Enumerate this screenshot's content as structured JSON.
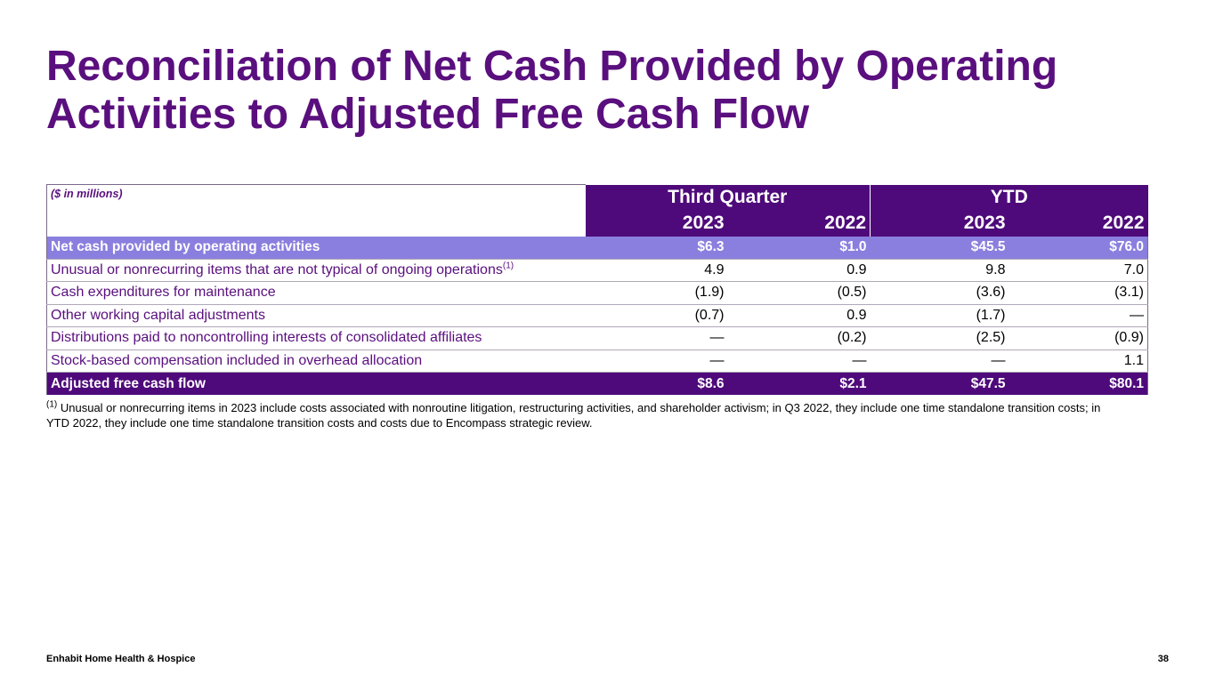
{
  "title": "Reconciliation of Net Cash Provided by Operating Activities to Adjusted Free Cash Flow",
  "table": {
    "unit_note": "($ in millions)",
    "groups": [
      "Third Quarter",
      "YTD"
    ],
    "years": [
      "2023",
      "2022",
      "2023",
      "2022"
    ],
    "rows": [
      {
        "label": "Net cash provided by operating activities",
        "sup": "",
        "values": [
          "$6.3",
          "$1.0",
          "$45.5",
          "$76.0"
        ]
      },
      {
        "label": "Unusual or nonrecurring items that are not typical of ongoing operations",
        "sup": "(1)",
        "values": [
          "4.9",
          "0.9",
          "9.8",
          "7.0"
        ]
      },
      {
        "label": "Cash expenditures for maintenance",
        "sup": "",
        "values": [
          "(1.9)",
          "(0.5)",
          "(3.6)",
          "(3.1)"
        ]
      },
      {
        "label": "Other working capital adjustments",
        "sup": "",
        "values": [
          "(0.7)",
          "0.9",
          "(1.7)",
          "—"
        ]
      },
      {
        "label": "Distributions paid to noncontrolling interests of consolidated affiliates",
        "sup": "",
        "values": [
          "—",
          "(0.2)",
          "(2.5)",
          "(0.9)"
        ]
      },
      {
        "label": "Stock-based compensation included in overhead allocation",
        "sup": "",
        "values": [
          "—",
          "—",
          "—",
          "1.1"
        ]
      },
      {
        "label": "Adjusted free cash flow",
        "sup": "",
        "values": [
          "$8.6",
          "$2.1",
          "$47.5",
          "$80.1"
        ]
      }
    ]
  },
  "footnote": {
    "marker": "(1)",
    "text": "Unusual or nonrecurring items in 2023 include costs associated with nonroutine litigation, restructuring activities, and shareholder activism; in Q3 2022, they include one time standalone transition costs; in YTD 2022, they include one time standalone transition costs and costs due to Encompass strategic review."
  },
  "footer": {
    "company": "Enhabit Home Health & Hospice",
    "page_number": "38"
  },
  "colors": {
    "title": "#5a0f7e",
    "header_bg": "#4e0a7a",
    "highlight_bg": "#8a7fde"
  }
}
